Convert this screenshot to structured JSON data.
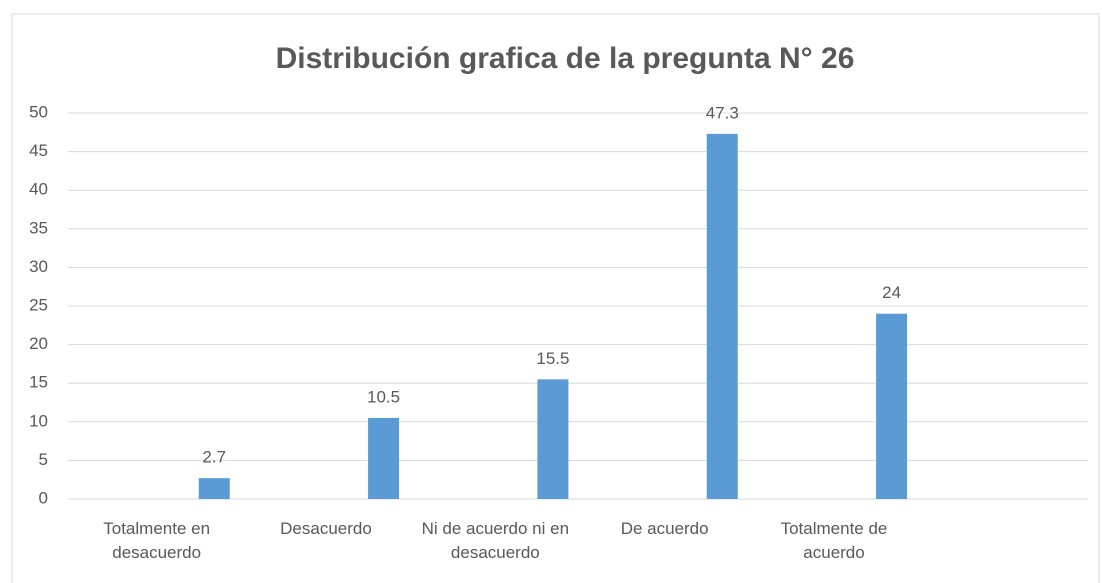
{
  "chart_data": {
    "type": "bar",
    "title": "Distribución grafica de la pregunta N° 26",
    "categories": [
      "Totalmente en desacuerdo",
      "Desacuerdo",
      "Ni de acuerdo ni en desacuerdo",
      "De acuerdo",
      "Totalmente de acuerdo",
      null
    ],
    "values": [
      2.7,
      10.5,
      15.5,
      47.3,
      24,
      null
    ],
    "color": "#5b9bd5",
    "ylim": [
      0,
      50
    ],
    "yticks": [
      0,
      5,
      10,
      15,
      20,
      25,
      30,
      35,
      40,
      45,
      50
    ],
    "grid": true
  }
}
